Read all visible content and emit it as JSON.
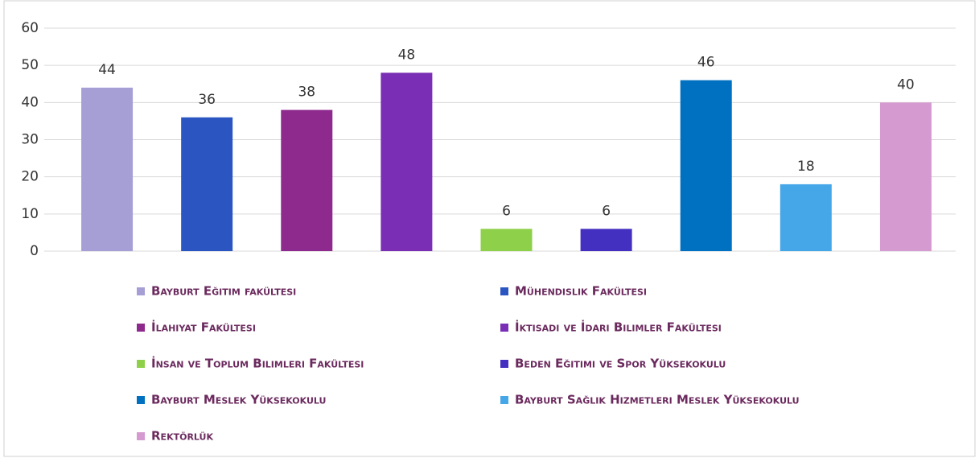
{
  "chart_data": {
    "type": "bar",
    "categories": [
      "Bayburt Eğitim fakültesi",
      "Mühendislik Fakültesi",
      "İlahiyat Fakültesi",
      "İktisadi ve İdari Bilimler Fakültesi",
      "İnsan ve Toplum Bilimleri Fakültesi",
      "Beden Eğitimi ve Spor Yüksekokulu",
      "Bayburt Meslek Yüksekokulu",
      "Bayburt Sağlık Hizmetleri Meslek Yüksekokulu",
      "Rektörlük"
    ],
    "values": [
      44,
      36,
      38,
      48,
      6,
      6,
      46,
      18,
      40
    ],
    "colors": [
      "#a59fd6",
      "#2b55c0",
      "#8e2a8e",
      "#7a2eb5",
      "#8ed04a",
      "#4430c0",
      "#0070c0",
      "#45a6e8",
      "#d59ad0"
    ],
    "ylim": [
      0,
      60
    ],
    "yticks": [
      0,
      10,
      20,
      30,
      40,
      50,
      60
    ],
    "grid": true
  }
}
